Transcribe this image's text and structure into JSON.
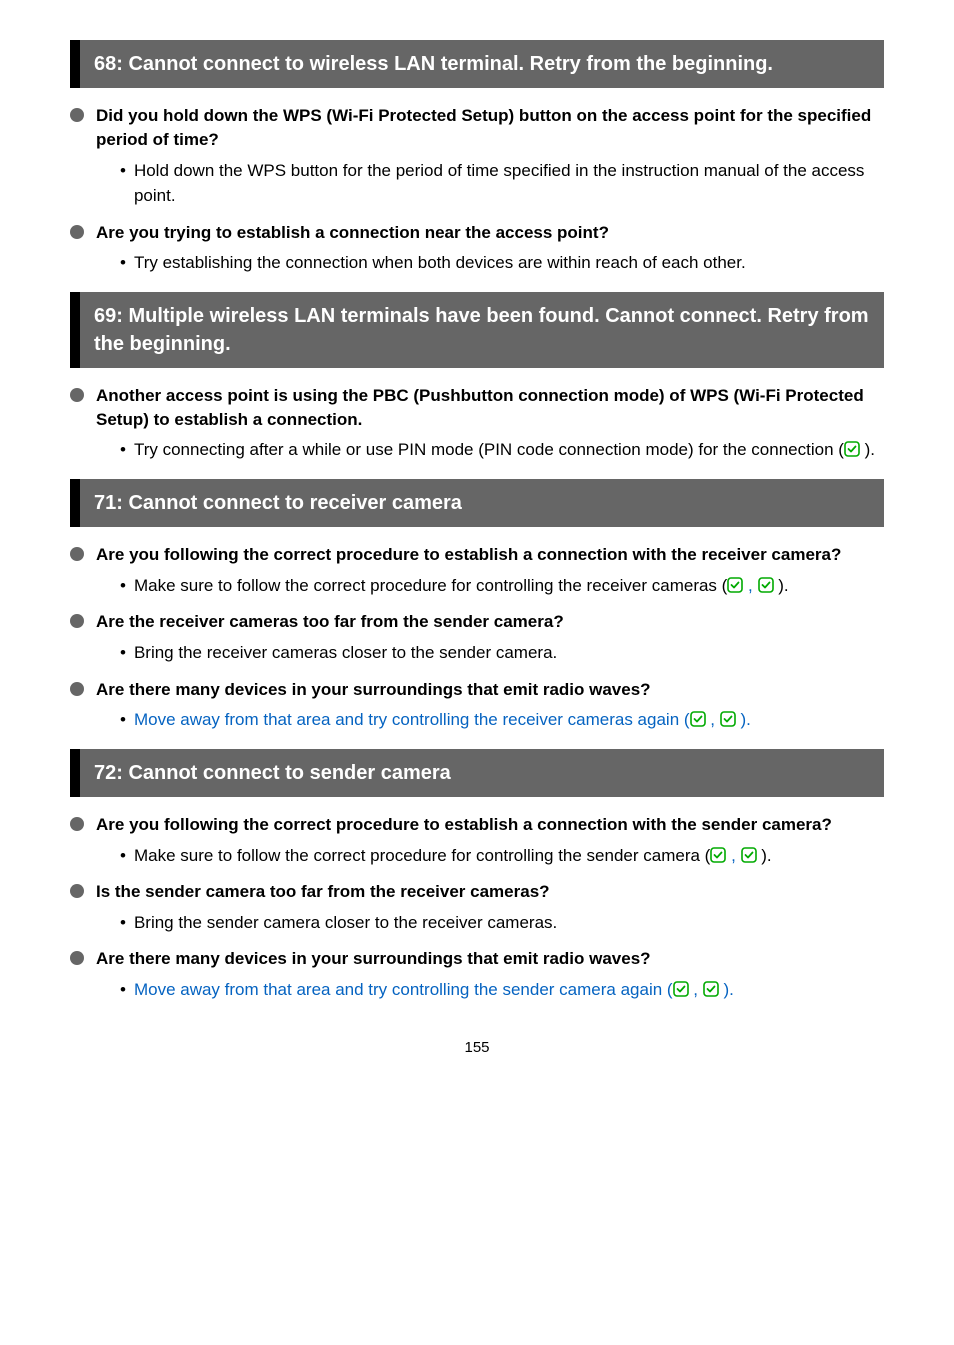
{
  "page": {
    "number": "155"
  },
  "colors": {
    "header_bg": "#666666",
    "header_bar": "#000000",
    "header_text": "#ffffff",
    "bullet_fill": "#666666",
    "link_green": "#00aa00",
    "link_blue": "#0563c1",
    "body_text": "#000000"
  },
  "typography": {
    "header_fontsize": 20,
    "bullet_fontsize": 17,
    "body_fontsize": 17,
    "pagenum_fontsize": 15
  },
  "sections": [
    {
      "key": "s68",
      "title": "68: Cannot connect to wireless LAN terminal. Retry from the beginning.",
      "items": [
        {
          "key": "q1",
          "question": "Did you hold down the WPS (Wi-Fi Protected Setup) button on the access point for the specified period of time?",
          "subs": [
            {
              "key": "a",
              "parts": [
                {
                  "t": "text",
                  "v": "Hold down the WPS button for the period of time specified in the instruction manual of the access point."
                }
              ]
            }
          ]
        },
        {
          "key": "q2",
          "question": "Are you trying to establish a connection near the access point?",
          "subs": [
            {
              "key": "a",
              "parts": [
                {
                  "t": "text",
                  "v": "Try establishing the connection when both devices are within reach of each other."
                }
              ]
            }
          ]
        }
      ]
    },
    {
      "key": "s69",
      "title": "69: Multiple wireless LAN terminals have been found. Cannot connect. Retry from the beginning.",
      "items": [
        {
          "key": "q1",
          "question": "Another access point is using the PBC (Pushbutton connection mode) of WPS (Wi-Fi Protected Setup) to establish a connection.",
          "subs": [
            {
              "key": "a",
              "parts": [
                {
                  "t": "text",
                  "v": "Try connecting after a while or use PIN mode (PIN code connection mode) for the connection ("
                },
                {
                  "t": "icon",
                  "color": "green"
                },
                {
                  "t": "text",
                  "v": " )."
                }
              ]
            }
          ]
        }
      ]
    },
    {
      "key": "s71",
      "title": "71: Cannot connect to receiver camera",
      "items": [
        {
          "key": "q1",
          "question": "Are you following the correct procedure to establish a connection with the receiver camera?",
          "subs": [
            {
              "key": "a",
              "parts": [
                {
                  "t": "text",
                  "v": "Make sure to follow the correct procedure for controlling the receiver cameras ("
                },
                {
                  "t": "icon",
                  "color": "green"
                },
                {
                  "t": "text_blue",
                  "v": " , "
                },
                {
                  "t": "icon",
                  "color": "green"
                },
                {
                  "t": "text",
                  "v": " )."
                }
              ]
            }
          ]
        },
        {
          "key": "q2",
          "question": "Are the receiver cameras too far from the sender camera?",
          "subs": [
            {
              "key": "a",
              "parts": [
                {
                  "t": "text",
                  "v": "Bring the receiver cameras closer to the sender camera."
                }
              ]
            }
          ]
        },
        {
          "key": "q3",
          "question": "Are there many devices in your surroundings that emit radio waves?",
          "subs": [
            {
              "key": "a",
              "parts": [
                {
                  "t": "text_blue",
                  "v": "Move away from that area and try controlling the receiver cameras again ("
                },
                {
                  "t": "icon",
                  "color": "green"
                },
                {
                  "t": "text_blue",
                  "v": " , "
                },
                {
                  "t": "icon",
                  "color": "green"
                },
                {
                  "t": "text_blue",
                  "v": " )."
                }
              ]
            }
          ]
        }
      ]
    },
    {
      "key": "s72",
      "title": "72: Cannot connect to sender camera",
      "items": [
        {
          "key": "q1",
          "question": "Are you following the correct procedure to establish a connection with the sender camera?",
          "subs": [
            {
              "key": "a",
              "parts": [
                {
                  "t": "text",
                  "v": "Make sure to follow the correct procedure for controlling the sender camera ("
                },
                {
                  "t": "icon",
                  "color": "green"
                },
                {
                  "t": "text_blue",
                  "v": " , "
                },
                {
                  "t": "icon",
                  "color": "green"
                },
                {
                  "t": "text",
                  "v": " )."
                }
              ]
            }
          ]
        },
        {
          "key": "q2",
          "question": "Is the sender camera too far from the receiver cameras?",
          "subs": [
            {
              "key": "a",
              "parts": [
                {
                  "t": "text",
                  "v": "Bring the sender camera closer to the receiver cameras."
                }
              ]
            }
          ]
        },
        {
          "key": "q3",
          "question": "Are there many devices in your surroundings that emit radio waves?",
          "subs": [
            {
              "key": "a",
              "parts": [
                {
                  "t": "text_blue",
                  "v": "Move away from that area and try controlling the sender camera again ("
                },
                {
                  "t": "icon",
                  "color": "green"
                },
                {
                  "t": "text_blue",
                  "v": " , "
                },
                {
                  "t": "icon",
                  "color": "green"
                },
                {
                  "t": "text_blue",
                  "v": " )."
                }
              ]
            }
          ]
        }
      ]
    }
  ]
}
